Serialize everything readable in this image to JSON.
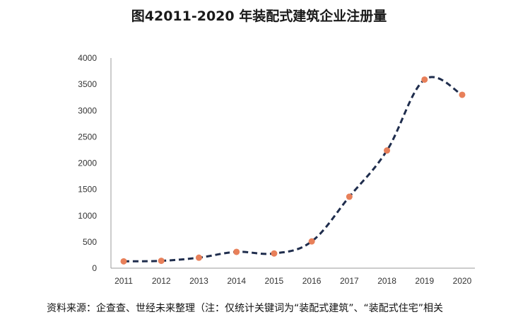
{
  "title": "图42011-2020 年装配式建筑企业注册量",
  "source": "资料来源：企查查、世经未来整理（注：仅统计关键词为“装配式建筑”、“装配式住宅”相关",
  "chart_data": {
    "type": "line",
    "title": "图42011-2020 年装配式建筑企业注册量",
    "categories": [
      "2011",
      "2012",
      "2013",
      "2014",
      "2015",
      "2016",
      "2017",
      "2018",
      "2019",
      "2020"
    ],
    "series": [
      {
        "values": [
          130,
          140,
          200,
          310,
          280,
          510,
          1360,
          2240,
          3590,
          3300
        ]
      }
    ],
    "ylim": [
      0,
      4000
    ],
    "yticks": [
      0,
      500,
      1000,
      1500,
      2000,
      2500,
      3000,
      3500,
      4000
    ],
    "xlabel": "",
    "ylabel": "",
    "grid": false,
    "line_color": "#1f2d4d",
    "line_style": "dashed",
    "marker_color": "#e8805a"
  }
}
